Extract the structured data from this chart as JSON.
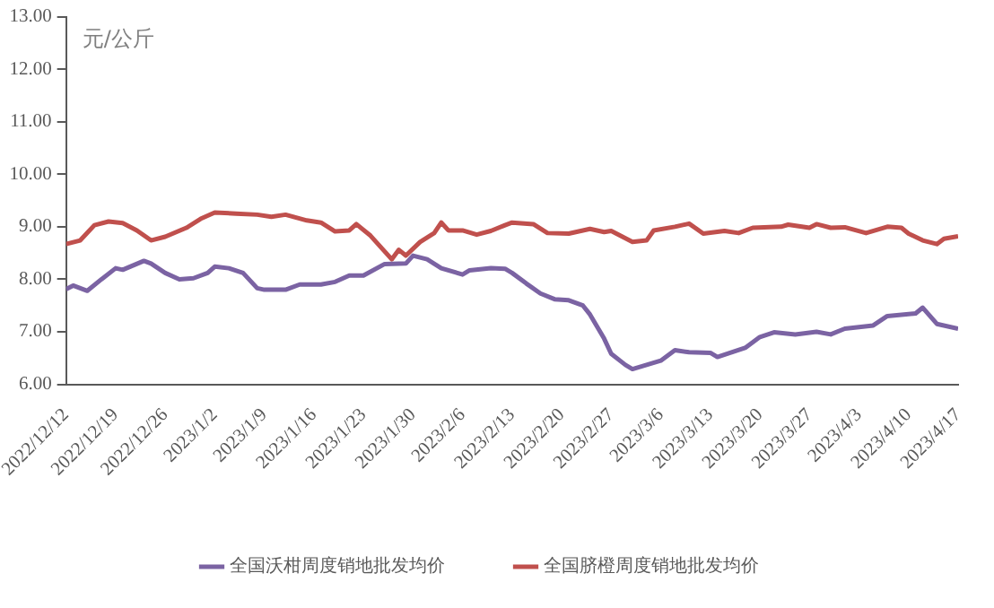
{
  "chart_data": {
    "type": "line",
    "ylabel": "元/公斤",
    "xlim": [
      "2022-12-12",
      "2023-04-17"
    ],
    "xticks": [
      {
        "value": "2022-12-12",
        "label": "2022/12/12"
      },
      {
        "value": "2022-12-19",
        "label": "2022/12/19"
      },
      {
        "value": "2022-12-26",
        "label": "2022/12/26"
      },
      {
        "value": "2023-01-02",
        "label": "2023/1/2"
      },
      {
        "value": "2023-01-09",
        "label": "2023/1/9"
      },
      {
        "value": "2023-01-16",
        "label": "2023/1/16"
      },
      {
        "value": "2023-01-23",
        "label": "2023/1/23"
      },
      {
        "value": "2023-01-30",
        "label": "2023/1/30"
      },
      {
        "value": "2023-02-06",
        "label": "2023/2/6"
      },
      {
        "value": "2023-02-13",
        "label": "2023/2/13"
      },
      {
        "value": "2023-02-20",
        "label": "2023/2/20"
      },
      {
        "value": "2023-02-27",
        "label": "2023/2/27"
      },
      {
        "value": "2023-03-06",
        "label": "2023/3/6"
      },
      {
        "value": "2023-03-13",
        "label": "2023/3/13"
      },
      {
        "value": "2023-03-20",
        "label": "2023/3/20"
      },
      {
        "value": "2023-03-27",
        "label": "2023/3/27"
      },
      {
        "value": "2023-04-03",
        "label": "2023/4/3"
      },
      {
        "value": "2023-04-10",
        "label": "2023/4/10"
      },
      {
        "value": "2023-04-17",
        "label": "2023/4/17"
      }
    ],
    "ylim": [
      6,
      13
    ],
    "yticks": [
      {
        "value": 6,
        "label": "6.00"
      },
      {
        "value": 7,
        "label": "7.00"
      },
      {
        "value": 8,
        "label": "8.00"
      },
      {
        "value": 9,
        "label": "9.00"
      },
      {
        "value": 10,
        "label": "10.00"
      },
      {
        "value": 11,
        "label": "11.00"
      },
      {
        "value": 12,
        "label": "12.00"
      },
      {
        "value": 13,
        "label": "13.00"
      }
    ],
    "grid": false,
    "legend": "bottom",
    "marker": "none",
    "line_style": "solid",
    "series": [
      {
        "name": "全国沃柑周度销地批发均价",
        "color": "#7b63a3",
        "x": [
          "2022-12-12",
          "2022-12-13",
          "2022-12-15",
          "2022-12-17",
          "2022-12-19",
          "2022-12-20",
          "2022-12-23",
          "2022-12-24",
          "2022-12-26",
          "2022-12-28",
          "2022-12-30",
          "2023-01-01",
          "2023-01-02",
          "2023-01-04",
          "2023-01-06",
          "2023-01-08",
          "2023-01-09",
          "2023-01-12",
          "2023-01-14",
          "2023-01-17",
          "2023-01-19",
          "2023-01-21",
          "2023-01-23",
          "2023-01-26",
          "2023-01-29",
          "2023-01-30",
          "2023-02-01",
          "2023-02-03",
          "2023-02-06",
          "2023-02-07",
          "2023-02-10",
          "2023-02-12",
          "2023-02-13",
          "2023-02-15",
          "2023-02-17",
          "2023-02-19",
          "2023-02-21",
          "2023-02-23",
          "2023-02-24",
          "2023-02-26",
          "2023-02-27",
          "2023-03-01",
          "2023-03-02",
          "2023-03-04",
          "2023-03-06",
          "2023-03-08",
          "2023-03-10",
          "2023-03-13",
          "2023-03-14",
          "2023-03-18",
          "2023-03-20",
          "2023-03-22",
          "2023-03-25",
          "2023-03-28",
          "2023-03-30",
          "2023-04-01",
          "2023-04-05",
          "2023-04-07",
          "2023-04-11",
          "2023-04-12",
          "2023-04-14",
          "2023-04-17"
        ],
        "values": [
          7.81,
          7.88,
          7.78,
          8.0,
          8.21,
          8.18,
          8.35,
          8.3,
          8.12,
          8.0,
          8.02,
          8.12,
          8.24,
          8.21,
          8.12,
          7.83,
          7.8,
          7.8,
          7.9,
          7.9,
          7.95,
          8.07,
          8.07,
          8.29,
          8.3,
          8.45,
          8.38,
          8.21,
          8.09,
          8.17,
          8.21,
          8.2,
          8.12,
          7.92,
          7.73,
          7.62,
          7.6,
          7.5,
          7.33,
          6.87,
          6.58,
          6.37,
          6.29,
          6.37,
          6.45,
          6.65,
          6.61,
          6.6,
          6.52,
          6.7,
          6.9,
          6.99,
          6.95,
          7.0,
          6.95,
          7.06,
          7.12,
          7.3,
          7.35,
          7.46,
          7.15,
          7.06
        ]
      },
      {
        "name": "全国脐橙周度销地批发均价",
        "color": "#c0504d",
        "x": [
          "2022-12-12",
          "2022-12-14",
          "2022-12-16",
          "2022-12-18",
          "2022-12-20",
          "2022-12-22",
          "2022-12-24",
          "2022-12-26",
          "2022-12-29",
          "2022-12-31",
          "2023-01-02",
          "2023-01-05",
          "2023-01-08",
          "2023-01-10",
          "2023-01-12",
          "2023-01-15",
          "2023-01-17",
          "2023-01-19",
          "2023-01-21",
          "2023-01-22",
          "2023-01-24",
          "2023-01-27",
          "2023-01-28",
          "2023-01-29",
          "2023-01-31",
          "2023-02-02",
          "2023-02-03",
          "2023-02-04",
          "2023-02-06",
          "2023-02-08",
          "2023-02-10",
          "2023-02-12",
          "2023-02-13",
          "2023-02-16",
          "2023-02-18",
          "2023-02-21",
          "2023-02-24",
          "2023-02-26",
          "2023-02-27",
          "2023-03-02",
          "2023-03-04",
          "2023-03-05",
          "2023-03-08",
          "2023-03-10",
          "2023-03-12",
          "2023-03-15",
          "2023-03-17",
          "2023-03-19",
          "2023-03-23",
          "2023-03-24",
          "2023-03-27",
          "2023-03-28",
          "2023-03-30",
          "2023-04-01",
          "2023-04-04",
          "2023-04-07",
          "2023-04-09",
          "2023-04-10",
          "2023-04-12",
          "2023-04-14",
          "2023-04-15",
          "2023-04-17"
        ],
        "values": [
          8.67,
          8.74,
          9.03,
          9.1,
          9.07,
          8.93,
          8.74,
          8.81,
          8.98,
          9.15,
          9.27,
          9.25,
          9.23,
          9.19,
          9.23,
          9.12,
          9.08,
          8.91,
          8.93,
          9.05,
          8.83,
          8.38,
          8.56,
          8.45,
          8.71,
          8.88,
          9.08,
          8.93,
          8.93,
          8.85,
          8.92,
          9.03,
          9.08,
          9.05,
          8.88,
          8.87,
          8.96,
          8.9,
          8.92,
          8.71,
          8.74,
          8.93,
          9.0,
          9.06,
          8.87,
          8.92,
          8.88,
          8.98,
          9.0,
          9.04,
          8.98,
          9.05,
          8.98,
          8.99,
          8.88,
          9.0,
          8.98,
          8.87,
          8.74,
          8.67,
          8.77,
          8.82
        ]
      }
    ]
  }
}
